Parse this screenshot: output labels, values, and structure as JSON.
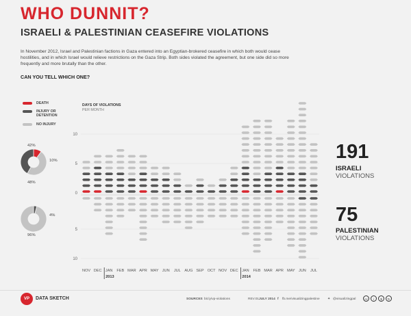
{
  "header": {
    "title": "WHO DUNNIT?",
    "subtitle": "ISRAELI & PALESTINIAN CEASEFIRE VIOLATIONS",
    "intro": "In November 2012, Israel and Palestinian factions in Gaza entered into an Egyptian-brokered ceasefire in which both would cease hostilities, and in which Israel would relieve restrictions on the Gaza Strip.  Both sides violated the agreement, but one side did so more frequently and more brutally than the other.",
    "question": "CAN YOU TELL WHICH ONE?"
  },
  "legend": {
    "death": "DEATH",
    "injury_l1": "INJURY OR",
    "injury_l2": "DETENTION",
    "no_injury": "NO INJURY"
  },
  "axis": {
    "title": "DAYS OF VIOLATIONS",
    "subtitle": "PER MONTH"
  },
  "totals": {
    "israeli": {
      "number": "191",
      "label1": "ISRAELI",
      "label2": "VIOLATIONS"
    },
    "palestinian": {
      "number": "75",
      "label1": "PALESTINIAN",
      "label2": "VIOLATIONS"
    }
  },
  "pies": {
    "israeli": {
      "labels": [
        "42%",
        "10%",
        "48%"
      ],
      "values": [
        42,
        10,
        48
      ]
    },
    "palestinian": {
      "labels": [
        "4%",
        "96%"
      ],
      "values": [
        4,
        96
      ]
    }
  },
  "colors": {
    "accent": "#d7262e",
    "injury": "#555555",
    "no_injury": "#c3c3c3",
    "background": "#f2f2f2"
  },
  "chart_data": {
    "type": "bar",
    "title": "DAYS OF VIOLATIONS",
    "subtitle": "PER MONTH",
    "categories": [
      "NOV",
      "DEC",
      "JAN",
      "FEB",
      "MAR",
      "APR",
      "MAY",
      "JUN",
      "JUL",
      "AUG",
      "SEP",
      "OCT",
      "NOV",
      "DEC",
      "JAN",
      "FEB",
      "MAR",
      "APR",
      "MAY",
      "JUN",
      "JUL"
    ],
    "year_labels": [
      "2013",
      "2014"
    ],
    "y_ticks": [
      "10",
      "5",
      "0",
      "5",
      "10"
    ],
    "israeli": {
      "death": [
        1,
        1,
        0,
        0,
        0,
        1,
        0,
        0,
        0,
        0,
        0,
        0,
        0,
        0,
        1,
        0,
        0,
        1,
        0,
        0,
        0
      ],
      "injury": [
        3,
        4,
        4,
        4,
        3,
        3,
        3,
        3,
        2,
        1,
        2,
        1,
        2,
        3,
        4,
        3,
        4,
        4,
        4,
        4,
        2
      ],
      "no_injury": [
        2,
        2,
        3,
        4,
        4,
        3,
        2,
        2,
        2,
        1,
        1,
        1,
        1,
        2,
        7,
        10,
        9,
        5,
        9,
        12,
        7
      ]
    },
    "palestinian": {
      "death": [
        0,
        0,
        0,
        0,
        0,
        0,
        0,
        0,
        0,
        0,
        0,
        0,
        0,
        0,
        0,
        0,
        0,
        0,
        0,
        0,
        0
      ],
      "injury": [
        0,
        0,
        0,
        0,
        0,
        0,
        0,
        0,
        0,
        0,
        0,
        0,
        0,
        0,
        0,
        0,
        0,
        0,
        0,
        1,
        1
      ],
      "no_injury": [
        1,
        3,
        7,
        4,
        3,
        8,
        4,
        5,
        5,
        6,
        5,
        4,
        4,
        4,
        7,
        10,
        8,
        5,
        9,
        10,
        6
      ]
    }
  },
  "footer": {
    "brand": "DATA SKETCH",
    "logo": "VP",
    "sources_label": "SOURCES",
    "sources": "bit.ly/vp-violations",
    "revision_label": "REV.01",
    "revision": "JULY 2014",
    "facebook": "fb.me/visualizingpalestine",
    "twitter": "@visualizingpal"
  }
}
